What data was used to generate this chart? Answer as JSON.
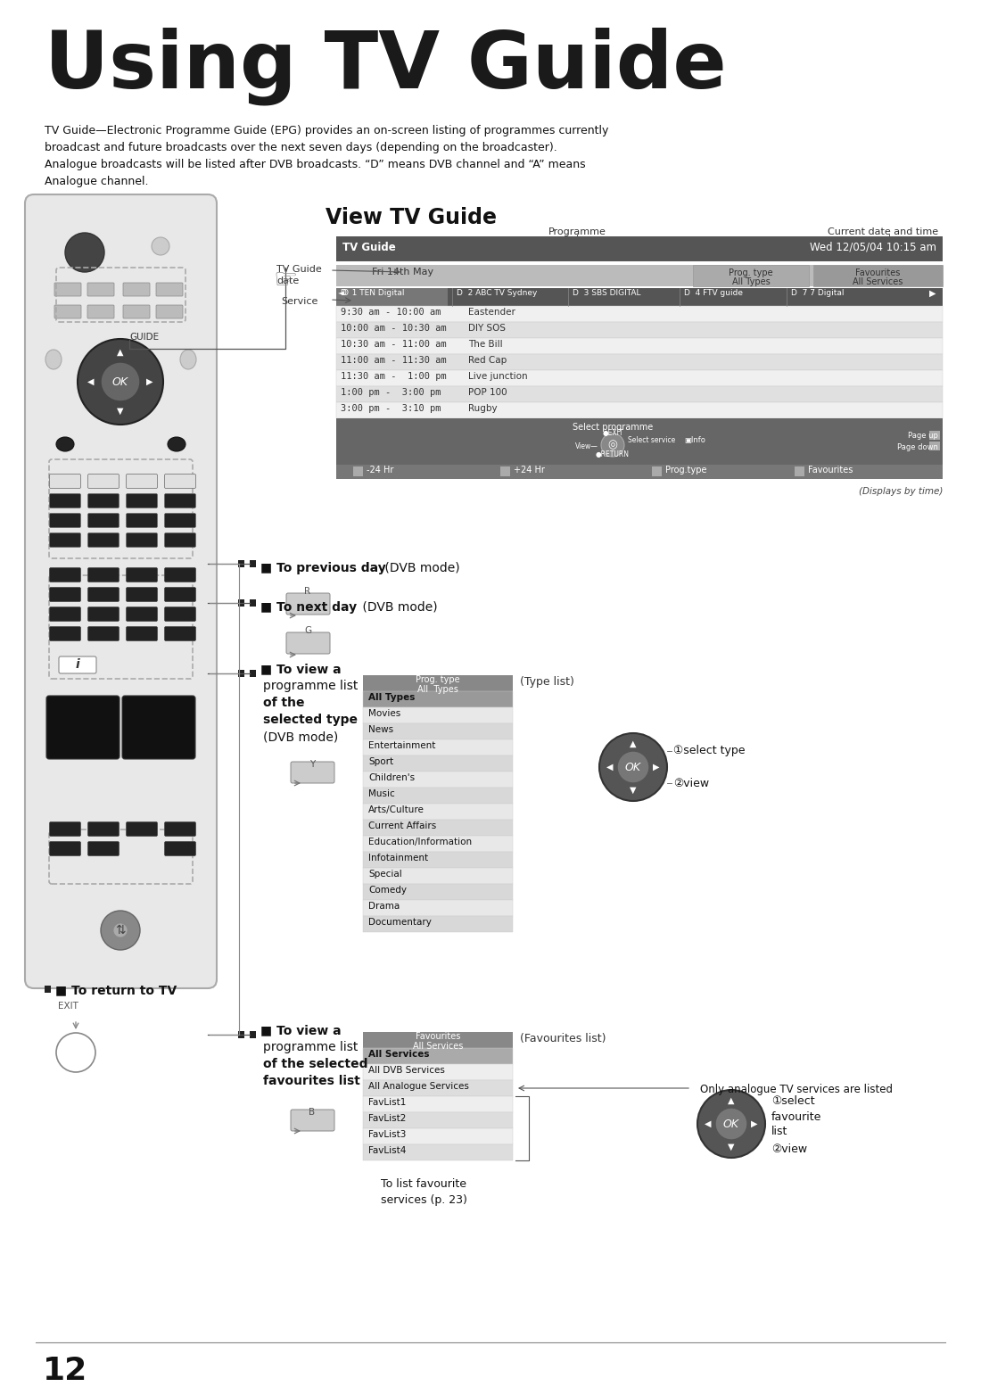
{
  "title": "Using TV Guide",
  "bg_color": "#ffffff",
  "title_color": "#1a1a1a",
  "body_text1": "TV Guide—Electronic Programme Guide (EPG) provides an on-screen listing of programmes currently",
  "body_text2": "broadcast and future broadcasts over the next seven days (depending on the broadcaster).",
  "body_text3": "Analogue broadcasts will be listed after DVB broadcasts. “D” means DVB channel and “A” means",
  "body_text4": "Analogue channel.",
  "section_title": "View TV Guide",
  "epg_title": "TV Guide",
  "epg_date": "Wed 12/05/04 10:15 am",
  "epg_guide_date": "Fri 14th May",
  "epg_prog_type_label": "Prog. type",
  "epg_all_types_label": "All Types",
  "epg_favourites_label": "Favourites",
  "epg_all_services_label": "All Services",
  "epg_channels": [
    "D  1 TEN Digital",
    "D  2 ABC TV Sydney",
    "D  3 SBS DIGITAL",
    "D  4 FTV guide",
    "D  7 7 Digital"
  ],
  "epg_programmes": [
    [
      "9:30 am - 10:00 am",
      "Eastender"
    ],
    [
      "10:00 am - 10:30 am",
      "DIY SOS"
    ],
    [
      "10:30 am - 11:00 am",
      "The Bill"
    ],
    [
      "11:00 am - 11:30 am",
      "Red Cap"
    ],
    [
      "11:30 am -  1:00 pm",
      "Live junction"
    ],
    [
      "1:00 pm -  3:00 pm",
      "POP 100"
    ],
    [
      "3:00 pm -  3:10 pm",
      "Rugby"
    ]
  ],
  "epg_footer_btns": [
    "-24 Hr",
    "+24 Hr",
    "Prog.type",
    "Favourites"
  ],
  "epg_note": "(Displays by time)",
  "label_programme": "Programme",
  "label_current": "Current date and time",
  "anno_prev": "To previous day",
  "anno_prev_mode": " (DVB mode)",
  "anno_next": "To next day",
  "anno_next_mode": " (DVB mode)",
  "anno_view_lines": [
    "To view a",
    "programme list",
    "of the",
    "selected type",
    "(DVB mode)"
  ],
  "type_list_label": "(Type list)",
  "type_list_header1": "Prog. type",
  "type_list_header2": "All  Types",
  "type_list_items": [
    "All Types",
    "Movies",
    "News",
    "Entertainment",
    "Sport",
    "Children's",
    "Music",
    "Arts/Culture",
    "Current Affairs",
    "Education/Information",
    "Infotainment",
    "Special",
    "Comedy",
    "Drama",
    "Documentary"
  ],
  "select_type_label": "①select type",
  "view_label": "②view",
  "anno_fav_lines": [
    "To view a",
    "programme list",
    "of the selected",
    "favourites list"
  ],
  "fav_list_label": "(Favourites list)",
  "fav_header1": "Favourites",
  "fav_header2": "All Services",
  "fav_items": [
    "All Services",
    "All DVB Services",
    "All Analogue Services",
    "FavList1",
    "FavList2",
    "FavList3",
    "FavList4"
  ],
  "fav_note": "Only analogue TV services are listed",
  "fav_select_lines": [
    "①select",
    "favourite",
    "list"
  ],
  "fav_view": "②view",
  "fav_to_list": "To list favourite\nservices (p. 23)",
  "return_label": "To return to TV",
  "exit_label": "EXIT",
  "page_number": "12",
  "epg_header_bg": "#555555",
  "epg_date_bg": "#bbbbbb",
  "epg_progtype_bg": "#aaaaaa",
  "epg_fav_bg": "#999999",
  "epg_channel_bg": "#555555",
  "epg_channel_sel": "#777777",
  "epg_row_light": "#f0f0f0",
  "epg_row_dark": "#e0e0e0",
  "epg_footer_bg": "#666666",
  "epg_btnbar_bg": "#777777",
  "type_header_bg": "#888888",
  "type_row_sel": "#999999",
  "type_row_light": "#e8e8e8",
  "type_row_dark": "#d8d8d8",
  "fav_header_bg": "#888888",
  "fav_row_sel": "#aaaaaa",
  "fav_row_light": "#eeeeee",
  "fav_row_dark": "#dddddd",
  "remote_body": "#e8e8e8",
  "remote_edge": "#aaaaaa",
  "remote_btn_dark": "#333333",
  "remote_btn_mid": "#888888",
  "remote_btn_light": "#cccccc",
  "remote_dpad_outer": "#444444",
  "remote_dpad_inner": "#666666",
  "ok_btn_outer": "#555555",
  "ok_btn_inner": "#777777"
}
